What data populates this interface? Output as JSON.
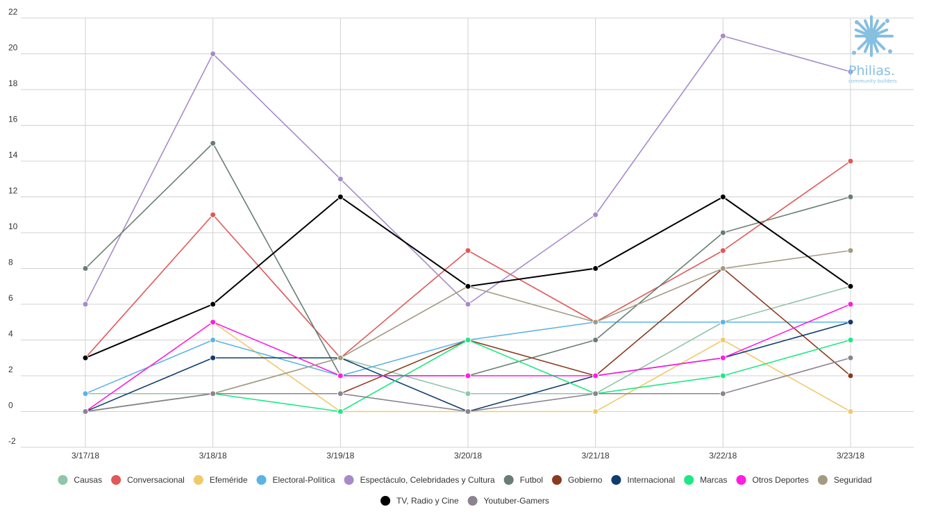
{
  "chart_data": {
    "type": "line",
    "categories": [
      "3/17/18",
      "3/18/18",
      "3/19/18",
      "3/20/18",
      "3/21/18",
      "3/22/18",
      "3/23/18"
    ],
    "ylim": [
      -2,
      22
    ],
    "yticks": [
      -2,
      0,
      2,
      4,
      6,
      8,
      10,
      12,
      14,
      16,
      18,
      20,
      22
    ],
    "grid": true,
    "legend_position": "bottom",
    "series": [
      {
        "name": "Causas",
        "color": "#8fc5a8",
        "values": [
          1,
          1,
          3,
          1,
          1,
          5,
          7
        ]
      },
      {
        "name": "Conversacional",
        "color": "#e05858",
        "values": [
          3,
          11,
          3,
          9,
          5,
          9,
          14
        ]
      },
      {
        "name": "Efeméride",
        "color": "#f0c96a",
        "values": [
          0,
          5,
          0,
          0,
          0,
          4,
          0
        ]
      },
      {
        "name": "Electoral-Política",
        "color": "#5bb4e4",
        "values": [
          1,
          4,
          2,
          4,
          5,
          5,
          5
        ]
      },
      {
        "name": "Espectáculo, Celebridades y Cultura",
        "color": "#a78bc8",
        "values": [
          6,
          20,
          13,
          6,
          11,
          21,
          19
        ]
      },
      {
        "name": "Futbol",
        "color": "#687e72",
        "values": [
          8,
          15,
          2,
          2,
          4,
          10,
          12
        ]
      },
      {
        "name": "Gobierno",
        "color": "#8b3a1e",
        "values": [
          0,
          1,
          1,
          4,
          2,
          8,
          2
        ]
      },
      {
        "name": "Internacional",
        "color": "#0f3d6e",
        "values": [
          0,
          3,
          3,
          0,
          2,
          3,
          5
        ]
      },
      {
        "name": "Marcas",
        "color": "#1ee882",
        "values": [
          0,
          1,
          0,
          4,
          1,
          2,
          4
        ]
      },
      {
        "name": "Otros Deportes",
        "color": "#ff1ce3",
        "values": [
          0,
          5,
          2,
          2,
          2,
          3,
          6
        ]
      },
      {
        "name": "Seguridad",
        "color": "#a39a82",
        "values": [
          0,
          1,
          3,
          7,
          5,
          8,
          9
        ]
      },
      {
        "name": "TV, Radio y Cine",
        "color": "#000000",
        "values": [
          3,
          6,
          12,
          7,
          8,
          12,
          7
        ]
      },
      {
        "name": "Youtuber-Gamers",
        "color": "#8c8390",
        "values": [
          0,
          1,
          1,
          0,
          1,
          1,
          3
        ]
      }
    ]
  },
  "logo": {
    "name": "Philias.",
    "tagline": "community builders",
    "color": "#86bfe0"
  }
}
